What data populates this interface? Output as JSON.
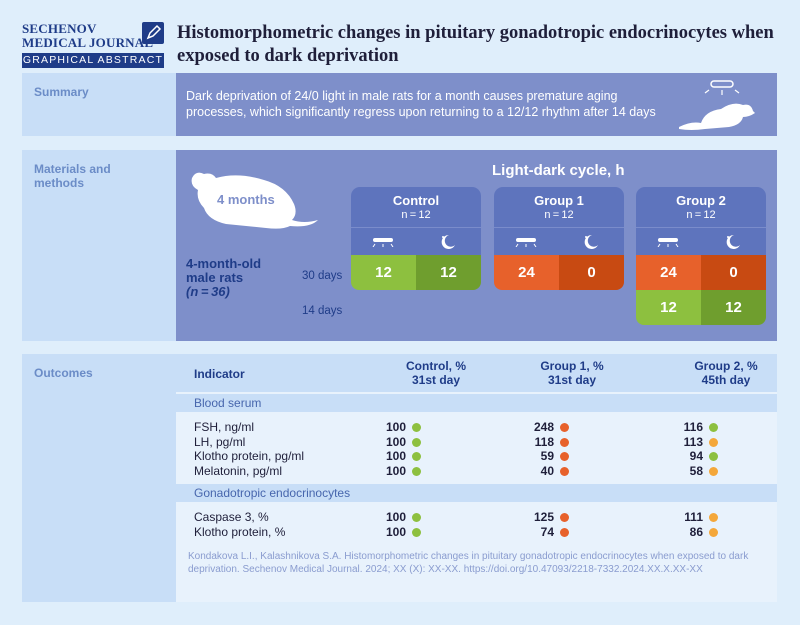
{
  "logo": {
    "line1": "SECHENOV",
    "line2": "MEDICAL JOURNAL",
    "band": "GRAPHICAL ABSTRACT"
  },
  "title": "Histomorphometric changes in pituitary gonadotropic endocrinocytes when exposed to dark deprivation",
  "summary": {
    "label": "Summary",
    "text": "Dark deprivation of 24/0 light in male rats for a month causes premature aging processes, which significantly regress upon returning to a 12/12 rhythm after 14 days"
  },
  "methods": {
    "label": "Materials and methods",
    "cycle_title": "Light-dark cycle, h",
    "rat_months": "4 months",
    "male_rats": [
      "4-month-old",
      "male rats",
      "(n = 36)"
    ],
    "days_30": "30 days",
    "days_14": "14 days",
    "groups": [
      {
        "name": "Control",
        "n": "n = 12",
        "row30": [
          "12",
          "12"
        ],
        "row14": null
      },
      {
        "name": "Group 1",
        "n": "n = 12",
        "row30": [
          "24",
          "0"
        ],
        "row14": null
      },
      {
        "name": "Group 2",
        "n": "n = 12",
        "row30": [
          "24",
          "0"
        ],
        "row14": [
          "12",
          "12"
        ]
      }
    ]
  },
  "outcomes": {
    "label": "Outcomes",
    "headers": {
      "indicator": "Indicator",
      "control": [
        "Control, %",
        "31st day"
      ],
      "g1": [
        "Group 1, %",
        "31st day"
      ],
      "g2": [
        "Group 2, %",
        "45th day"
      ]
    },
    "sections": [
      {
        "name": "Blood serum",
        "rows": [
          {
            "label": "FSH, ng/ml",
            "c": "100",
            "g1": "248",
            "g2": "116",
            "cs": "green",
            "g1s": "red",
            "g2s": "green"
          },
          {
            "label": "LH, pg/ml",
            "c": "100",
            "g1": "118",
            "g2": "113",
            "cs": "green",
            "g1s": "red",
            "g2s": "orange"
          },
          {
            "label": "Klotho protein, pg/ml",
            "c": "100",
            "g1": "59",
            "g2": "94",
            "cs": "green",
            "g1s": "red",
            "g2s": "green"
          },
          {
            "label": "Melatonin, pg/ml",
            "c": "100",
            "g1": "40",
            "g2": "58",
            "cs": "green",
            "g1s": "red",
            "g2s": "orange"
          }
        ]
      },
      {
        "name": "Gonadotropic endocrinocytes",
        "rows": [
          {
            "label": "Caspase 3, %",
            "c": "100",
            "g1": "125",
            "g2": "111",
            "cs": "green",
            "g1s": "red",
            "g2s": "orange"
          },
          {
            "label": "Klotho protein, %",
            "c": "100",
            "g1": "74",
            "g2": "86",
            "cs": "green",
            "g1s": "red",
            "g2s": "orange"
          }
        ]
      }
    ],
    "citation": "Kondakova L.I., Kalashnikova S.A. Histomorphometric changes in pituitary gonadotropic endocrinocytes when exposed to dark deprivation. Sechenov Medical Journal. 2024; XX (X): XX-XX. https://doi.org/10.47093/2218-7332.2024.XX.X.XX-XX"
  },
  "colors": {
    "green": "#8dc03f",
    "green_dark": "#6f9e2e",
    "red": "#e7612b",
    "red_dark": "#c84a12",
    "orange": "#f4a73a",
    "dot_green": "#8dc03f",
    "dot_red": "#e7612b",
    "dot_orange": "#f4a73a"
  }
}
